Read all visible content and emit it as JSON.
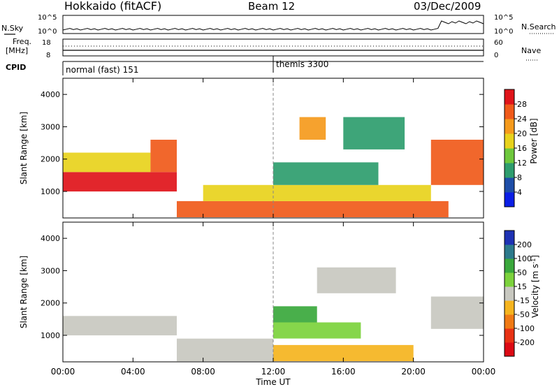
{
  "header": {
    "station": "Hokkaido (fitACF)",
    "beam": "Beam 12",
    "date": "03/Dec/2009"
  },
  "noise_panel": {
    "left_label": "N.Sky",
    "right_label": "N.Search",
    "left_ticks": [
      "10^5",
      "10^0"
    ],
    "right_ticks": [
      "10^5",
      "10^0"
    ]
  },
  "freq_panel": {
    "left_label_1": "Freq.",
    "left_label_2": "[MHz]",
    "right_label": "Nave",
    "left_ticks": [
      "18",
      "8"
    ],
    "right_ticks": [
      "60",
      "0"
    ]
  },
  "cpid": {
    "label": "CPID",
    "programs": [
      {
        "name": "normal (fast) 151"
      },
      {
        "name": "themis 3300"
      }
    ]
  },
  "power_panel": {
    "ylabel": "Slant Range [km]",
    "yticks": [
      "1000",
      "2000",
      "3000",
      "4000"
    ],
    "colorbar_label": "Power [dB]",
    "colorbar_ticks": [
      "4",
      "8",
      "12",
      "16",
      "20",
      "24",
      "28"
    ],
    "colors": [
      "#0a1ee6",
      "#1e4ea8",
      "#2e9d6e",
      "#6ec83c",
      "#e8d21c",
      "#f59a1c",
      "#f05a1a",
      "#e0141a"
    ]
  },
  "velocity_panel": {
    "ylabel": "Slant Range [km]",
    "yticks": [
      "1000",
      "2000",
      "3000",
      "4000"
    ],
    "colorbar_label": "Velocity [m s",
    "colorbar_label_sup": "-1",
    "colorbar_label_end": "]",
    "colorbar_ticks": [
      "200",
      "100",
      "50",
      "15",
      "-15",
      "-50",
      "-100",
      "-200"
    ],
    "colors": [
      "#1e32b4",
      "#2c7a8c",
      "#3aa83c",
      "#7cd23c",
      "#c8c8c0",
      "#f5b41e",
      "#f07a14",
      "#e83214",
      "#dc0a14"
    ]
  },
  "xaxis": {
    "label": "Time UT",
    "ticks": [
      "00:00",
      "04:00",
      "08:00",
      "12:00",
      "16:00",
      "20:00",
      "00:00"
    ]
  },
  "chart_data": {
    "type": "heatmap",
    "title": "Hokkaido (fitACF) Beam 12 03/Dec/2009",
    "xlabel": "Time UT",
    "ylabel": "Slant Range [km]",
    "xlim_hours": [
      0,
      24
    ],
    "ylim_km": [
      180,
      4500
    ],
    "panels": [
      {
        "name": "Power [dB]",
        "clim": [
          0,
          30
        ],
        "regions": [
          {
            "t_start": 0.0,
            "t_end": 6.5,
            "r_low": 1000,
            "r_high": 1600,
            "value": 28
          },
          {
            "t_start": 0.0,
            "t_end": 5.0,
            "r_low": 1600,
            "r_high": 2200,
            "value": 16
          },
          {
            "t_start": 5.0,
            "t_end": 6.5,
            "r_low": 1600,
            "r_high": 2600,
            "value": 26
          },
          {
            "t_start": 6.5,
            "t_end": 22.0,
            "r_low": 200,
            "r_high": 700,
            "value": 26
          },
          {
            "t_start": 8.0,
            "t_end": 21.0,
            "r_low": 700,
            "r_high": 1200,
            "value": 18
          },
          {
            "t_start": 12.0,
            "t_end": 18.0,
            "r_low": 1200,
            "r_high": 1900,
            "value": 10
          },
          {
            "t_start": 13.5,
            "t_end": 15.0,
            "r_low": 2600,
            "r_high": 3300,
            "value": 22
          },
          {
            "t_start": 16.0,
            "t_end": 19.5,
            "r_low": 2300,
            "r_high": 3300,
            "value": 8
          },
          {
            "t_start": 21.0,
            "t_end": 24.0,
            "r_low": 1200,
            "r_high": 2600,
            "value": 24
          }
        ]
      },
      {
        "name": "Velocity [m s^-1]",
        "clim": [
          -250,
          250
        ],
        "regions": [
          {
            "t_start": 0.0,
            "t_end": 6.5,
            "r_low": 1000,
            "r_high": 1600,
            "value": 0
          },
          {
            "t_start": 6.5,
            "t_end": 12.0,
            "r_low": 200,
            "r_high": 900,
            "value": 0
          },
          {
            "t_start": 12.0,
            "t_end": 20.0,
            "r_low": 200,
            "r_high": 700,
            "value": -60
          },
          {
            "t_start": 12.0,
            "t_end": 17.0,
            "r_low": 900,
            "r_high": 1400,
            "value": 40
          },
          {
            "t_start": 12.0,
            "t_end": 14.5,
            "r_low": 1400,
            "r_high": 1900,
            "value": 120
          },
          {
            "t_start": 14.5,
            "t_end": 19.0,
            "r_low": 2300,
            "r_high": 3100,
            "value": 20
          },
          {
            "t_start": 21.0,
            "t_end": 24.0,
            "r_low": 1200,
            "r_high": 2200,
            "value": 0
          }
        ]
      }
    ]
  }
}
